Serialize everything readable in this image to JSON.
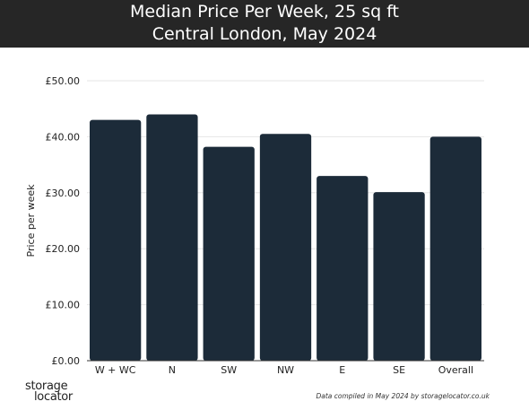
{
  "header": {
    "title": "Median Price Per Week, 25 sq ft",
    "subtitle": "Central London, May 2024"
  },
  "chart_data": {
    "type": "bar",
    "title": "Median Price Per Week, 25 sq ft",
    "subtitle": "Central London, May 2024",
    "xlabel": "",
    "ylabel": "Price per week",
    "ylim": [
      0,
      50
    ],
    "yticks": [
      "£0.00",
      "£10.00",
      "£20.00",
      "£30.00",
      "£40.00",
      "£50.00"
    ],
    "categories": [
      "W + WC",
      "N",
      "SW",
      "NW",
      "E",
      "SE",
      "Overall"
    ],
    "values": [
      43.0,
      44.0,
      38.2,
      40.5,
      33.0,
      30.1,
      40.0
    ],
    "bar_color": "#1c2b39",
    "grid": true
  },
  "footer": {
    "logo_line1": "storage",
    "logo_line2": "locator",
    "source": "Data compiled in May 2024 by storagelocator.co.uk"
  }
}
